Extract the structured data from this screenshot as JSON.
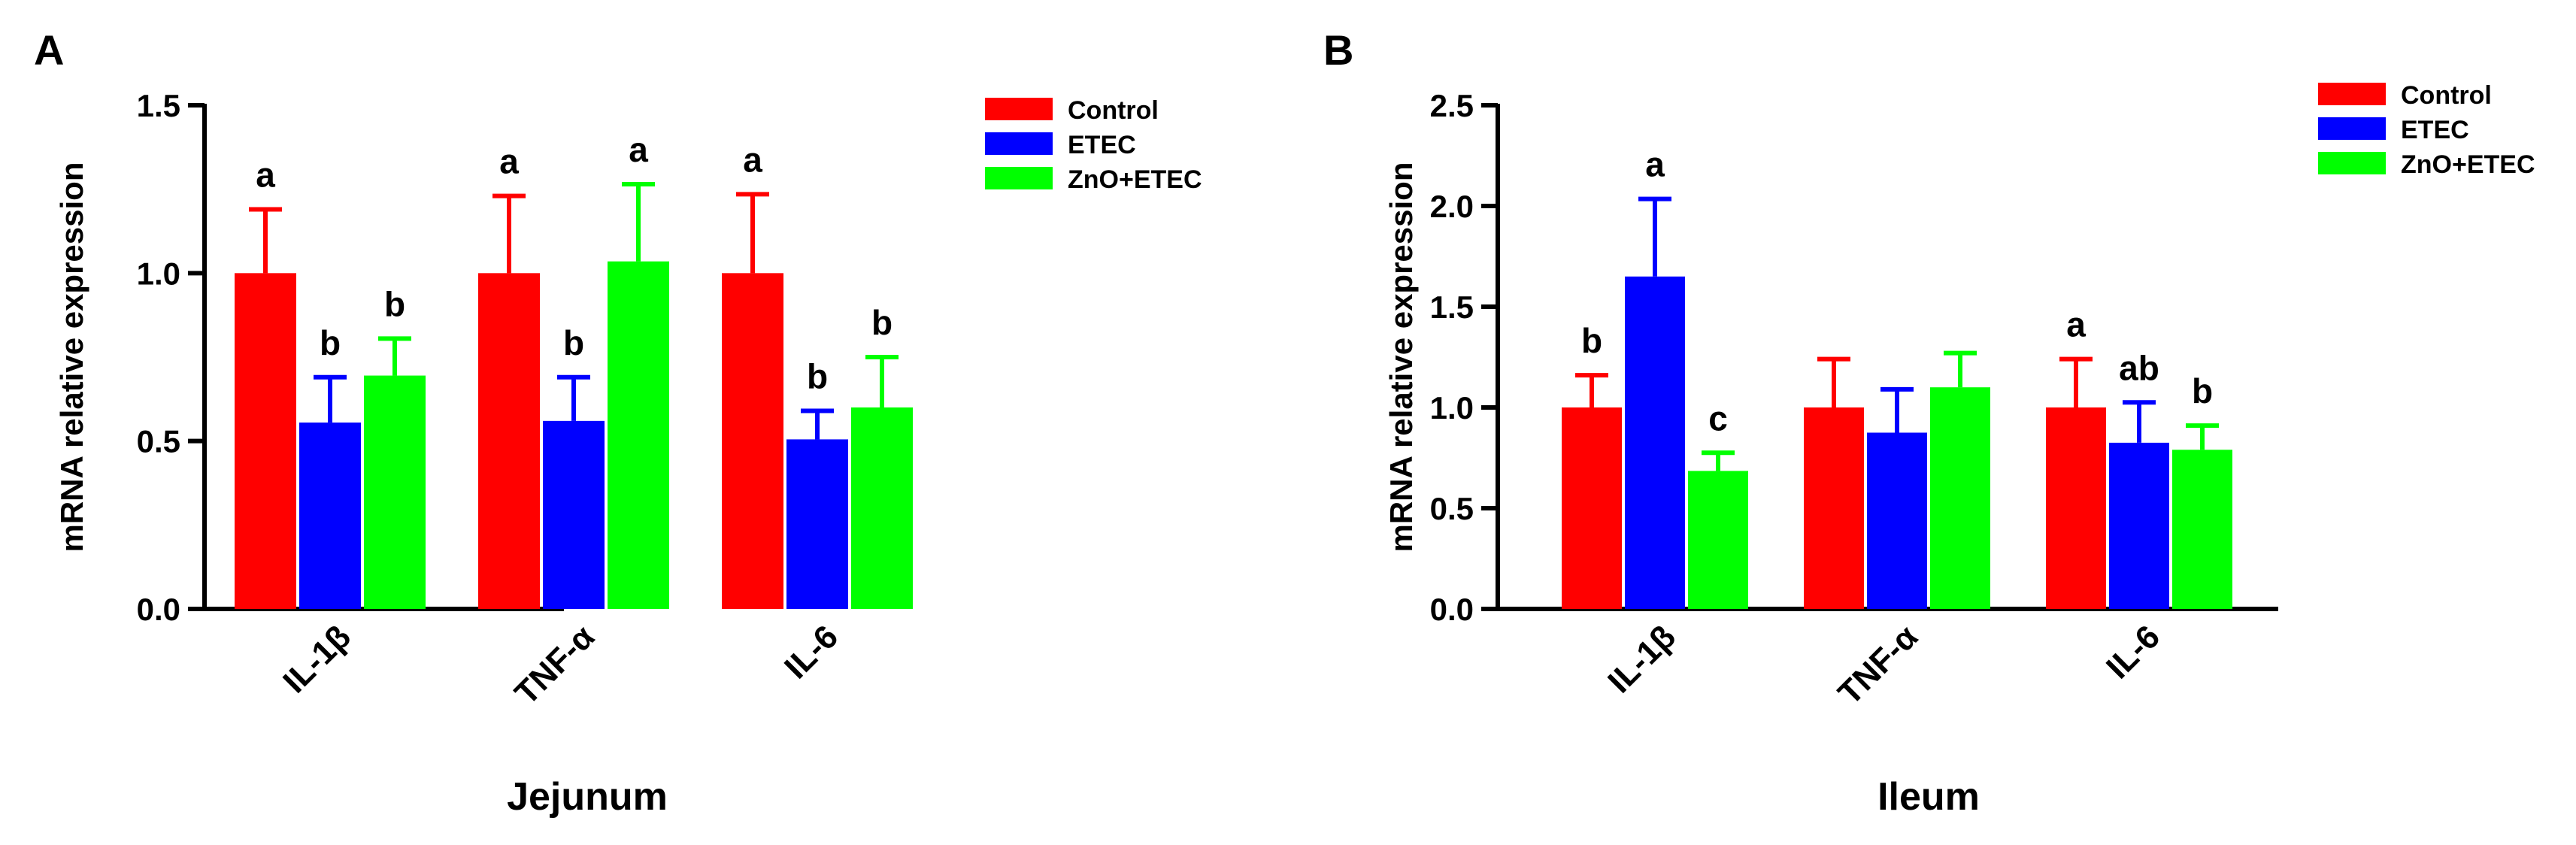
{
  "chart_data": [
    {
      "panel_label": "A",
      "type": "bar",
      "title": "",
      "xlabel": "Jejunum",
      "ylabel": "mRNA relative expression",
      "ylim": [
        0,
        1.5
      ],
      "yticks": [
        0.0,
        0.5,
        1.0,
        1.5
      ],
      "ytick_labels": [
        "0.0",
        "0.5",
        "1.0",
        "1.5"
      ],
      "categories": [
        "IL-1β",
        "TNF-α",
        "IL-6"
      ],
      "legend_position": "top-right",
      "series": [
        {
          "name": "Control",
          "color": "#ff0000",
          "values": [
            1.0,
            1.0,
            1.0
          ],
          "errors": [
            0.19,
            0.23,
            0.235
          ],
          "letters": [
            "a",
            "a",
            "a"
          ]
        },
        {
          "name": "ETEC",
          "color": "#0000ff",
          "values": [
            0.555,
            0.56,
            0.505
          ],
          "errors": [
            0.135,
            0.13,
            0.085
          ],
          "letters": [
            "b",
            "b",
            "b"
          ]
        },
        {
          "name": "ZnO+ETEC",
          "color": "#00ff00",
          "values": [
            0.695,
            1.035,
            0.6
          ],
          "errors": [
            0.11,
            0.23,
            0.15
          ],
          "letters": [
            "b",
            "a",
            "b"
          ]
        }
      ]
    },
    {
      "panel_label": "B",
      "type": "bar",
      "title": "",
      "xlabel": "Ileum",
      "ylabel": "mRNA relative expression",
      "ylim": [
        0,
        2.5
      ],
      "yticks": [
        0.0,
        0.5,
        1.0,
        1.5,
        2.0,
        2.5
      ],
      "ytick_labels": [
        "0.0",
        "0.5",
        "1.0",
        "1.5",
        "2.0",
        "2.5"
      ],
      "categories": [
        "IL-1β",
        "TNF-α",
        "IL-6"
      ],
      "legend_position": "top-right",
      "series": [
        {
          "name": "Control",
          "color": "#ff0000",
          "values": [
            1.0,
            1.0,
            1.0
          ],
          "errors": [
            0.16,
            0.24,
            0.24
          ],
          "letters": [
            "b",
            "",
            "a"
          ]
        },
        {
          "name": "ETEC",
          "color": "#0000ff",
          "values": [
            1.65,
            0.875,
            0.825
          ],
          "errors": [
            0.385,
            0.215,
            0.2
          ],
          "letters": [
            "a",
            "",
            "ab"
          ]
        },
        {
          "name": "ZnO+ETEC",
          "color": "#00ff00",
          "values": [
            0.685,
            1.1,
            0.79
          ],
          "errors": [
            0.09,
            0.17,
            0.12
          ],
          "letters": [
            "c",
            "",
            "b"
          ]
        }
      ]
    }
  ]
}
